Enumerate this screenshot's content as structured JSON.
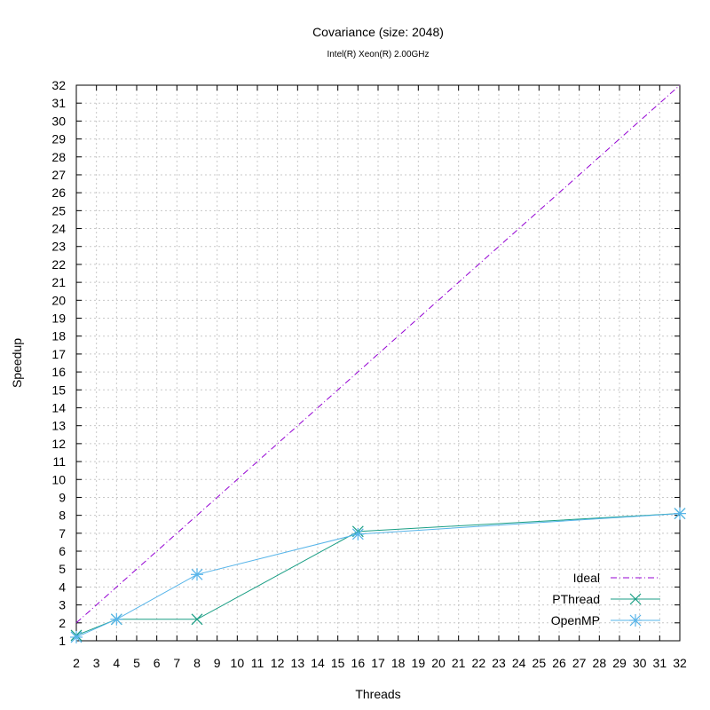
{
  "chart_data": {
    "type": "line",
    "title": "Covariance (size: 2048)",
    "subtitle": "Intel(R) Xeon(R) 2.00GHz",
    "xlabel": "Threads",
    "ylabel": "Speedup",
    "xlim": [
      2,
      32
    ],
    "ylim": [
      1,
      32
    ],
    "xticks": [
      2,
      3,
      4,
      5,
      6,
      7,
      8,
      9,
      10,
      11,
      12,
      13,
      14,
      15,
      16,
      17,
      18,
      19,
      20,
      21,
      22,
      23,
      24,
      25,
      26,
      27,
      28,
      29,
      30,
      31,
      32
    ],
    "yticks": [
      1,
      2,
      3,
      4,
      5,
      6,
      7,
      8,
      9,
      10,
      11,
      12,
      13,
      14,
      15,
      16,
      17,
      18,
      19,
      20,
      21,
      22,
      23,
      24,
      25,
      26,
      27,
      28,
      29,
      30,
      31,
      32
    ],
    "grid": true,
    "legend_position": "bottom-right",
    "series": [
      {
        "name": "Ideal",
        "color": "#9400d3",
        "style": "dash-dot",
        "marker": "none",
        "x": [
          2,
          32
        ],
        "y": [
          2,
          32
        ]
      },
      {
        "name": "PThread",
        "color": "#199e84",
        "style": "solid",
        "marker": "x",
        "x": [
          2,
          4,
          8,
          16,
          32
        ],
        "y": [
          1.3,
          2.2,
          2.2,
          7.1,
          8.1
        ]
      },
      {
        "name": "OpenMP",
        "color": "#56b4e9",
        "style": "solid",
        "marker": "star",
        "x": [
          2,
          4,
          8,
          16,
          32
        ],
        "y": [
          1.2,
          2.2,
          4.7,
          6.95,
          8.1
        ]
      }
    ]
  }
}
